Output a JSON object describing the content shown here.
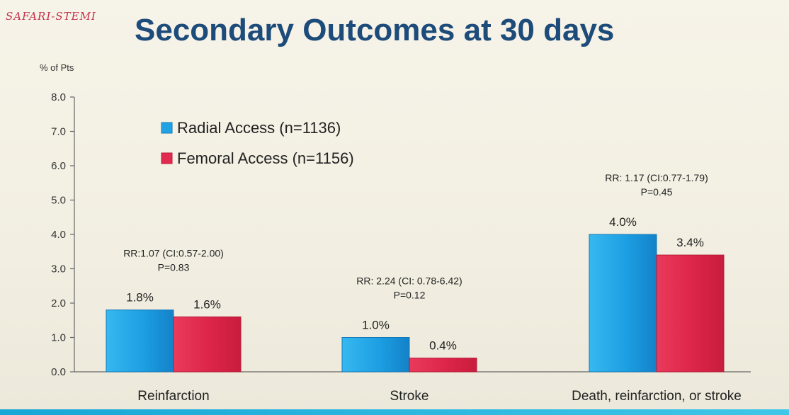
{
  "brand": "SAFARI-STEMI",
  "chart_data": {
    "type": "bar",
    "title": "Secondary Outcomes at 30 days",
    "ylabel": "% of Pts",
    "xlabel": "",
    "ylim": [
      0,
      8
    ],
    "yticks": [
      "0.0",
      "1.0",
      "2.0",
      "3.0",
      "4.0",
      "5.0",
      "6.0",
      "7.0",
      "8.0"
    ],
    "categories": [
      "Reinfarction",
      "Stroke",
      "Death, reinfarction, or stroke"
    ],
    "series": [
      {
        "name": "Radial Access (n=1136)",
        "color": "#1fa3e4",
        "values": [
          1.8,
          1.0,
          4.0
        ],
        "labels": [
          "1.8%",
          "1.0%",
          "4.0%"
        ]
      },
      {
        "name": "Femoral Access (n=1156)",
        "color": "#e02b4f",
        "values": [
          1.6,
          0.4,
          3.4
        ],
        "labels": [
          "1.6%",
          "0.4%",
          "3.4%"
        ]
      }
    ],
    "annotations": [
      {
        "rr": "RR:1.07 (CI:0.57-2.00)",
        "p": "P=0.83"
      },
      {
        "rr": "RR: 2.24 (CI: 0.78-6.42)",
        "p": "P=0.12"
      },
      {
        "rr": "RR: 1.17 (CI:0.77-1.79)",
        "p": "P=0.45"
      }
    ],
    "legend_position": "top-left",
    "grid": false
  }
}
